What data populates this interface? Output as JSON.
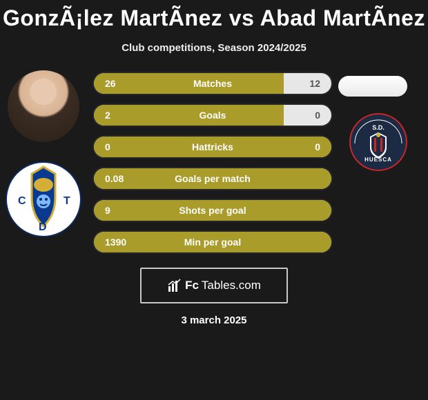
{
  "title": "GonzÃ¡lez MartÃnez vs Abad MartÃnez",
  "subtitle": "Club competitions, Season 2024/2025",
  "accent_color": "#a99c2b",
  "track_color": "#e7e7e7",
  "rows": [
    {
      "label": "Matches",
      "left": "26",
      "right": "12",
      "fill_pct": 80,
      "right_on": false
    },
    {
      "label": "Goals",
      "left": "2",
      "right": "0",
      "fill_pct": 80,
      "right_on": false
    },
    {
      "label": "Hattricks",
      "left": "0",
      "right": "0",
      "fill_pct": 100,
      "right_on": true
    },
    {
      "label": "Goals per match",
      "left": "0.08",
      "right": "",
      "fill_pct": 100,
      "right_on": true
    },
    {
      "label": "Shots per goal",
      "left": "9",
      "right": "",
      "fill_pct": 100,
      "right_on": true
    },
    {
      "label": "Min per goal",
      "left": "1390",
      "right": "",
      "fill_pct": 100,
      "right_on": true
    }
  ],
  "footer_brand_left": "Fc",
  "footer_brand_right": "Tables.com",
  "date": "3 march 2025",
  "left_club_name": "CD Tenerife",
  "right_club_name": "SD Huesca"
}
